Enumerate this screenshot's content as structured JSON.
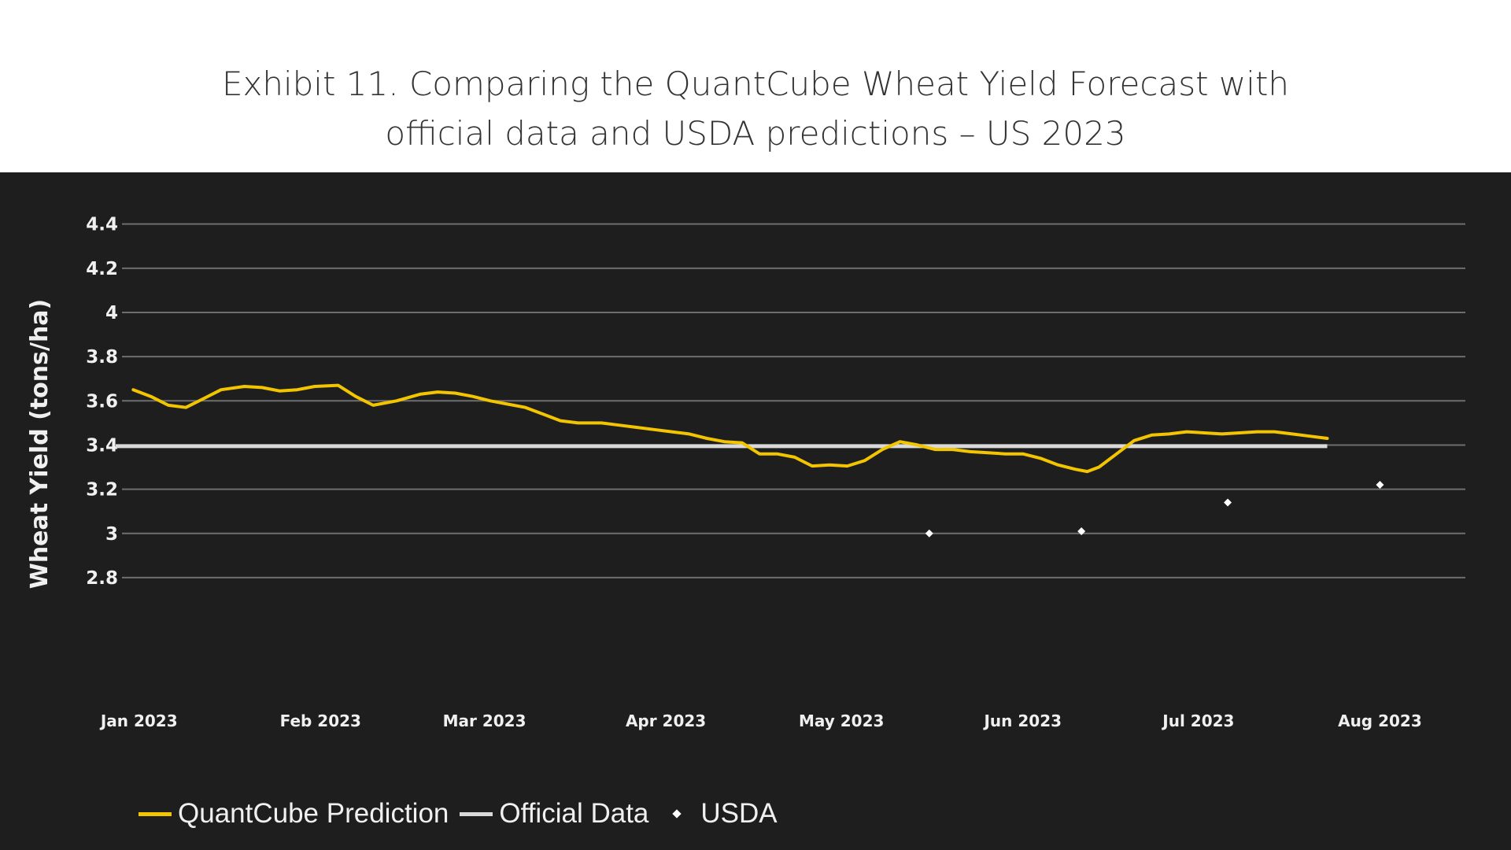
{
  "title": {
    "line1": "Exhibit 11. Comparing the QuantCube Wheat Yield Forecast with",
    "line2": "official data and USDA predictions – US 2023"
  },
  "colors": {
    "background": "#1e1e1e",
    "grid": "#6e6e6e",
    "prediction": "#f2c500",
    "official": "#d9d9d9",
    "usda": "#ffffff",
    "text": "#f0f0f0"
  },
  "chart_data": {
    "type": "line",
    "title": "Exhibit 11. Comparing the QuantCube Wheat Yield Forecast with official data and USDA predictions – US 2023",
    "xlabel": "",
    "ylabel": "Wheat Yield (tons/ha)",
    "ylim": [
      2.7,
      4.47
    ],
    "yticks": [
      {
        "value": 4.4,
        "label": "4.4"
      },
      {
        "value": 4.2,
        "label": "4.2"
      },
      {
        "value": 4.0,
        "label": "4"
      },
      {
        "value": 3.8,
        "label": "3.8"
      },
      {
        "value": 3.6,
        "label": "3.6"
      },
      {
        "value": 3.4,
        "label": "3.4"
      },
      {
        "value": 3.2,
        "label": "3.2"
      },
      {
        "value": 3.0,
        "label": "3"
      },
      {
        "value": 2.8,
        "label": "2.8"
      }
    ],
    "xlim_days": [
      -4,
      227
    ],
    "xticks": [
      {
        "day": 0,
        "label": "Jan 2023"
      },
      {
        "day": 31,
        "label": "Feb 2023"
      },
      {
        "day": 59,
        "label": "Mar 2023"
      },
      {
        "day": 90,
        "label": "Apr 2023"
      },
      {
        "day": 120,
        "label": "May 2023"
      },
      {
        "day": 151,
        "label": "Jun 2023"
      },
      {
        "day": 181,
        "label": "Jul 2023"
      },
      {
        "day": 212,
        "label": "Aug 2023"
      }
    ],
    "series": [
      {
        "name": "QuantCube Prediction",
        "kind": "line",
        "points": [
          [
            -1,
            3.65
          ],
          [
            2,
            3.62
          ],
          [
            5,
            3.58
          ],
          [
            8,
            3.57
          ],
          [
            11,
            3.61
          ],
          [
            14,
            3.65
          ],
          [
            18,
            3.665
          ],
          [
            21,
            3.66
          ],
          [
            24,
            3.645
          ],
          [
            27,
            3.65
          ],
          [
            30,
            3.665
          ],
          [
            34,
            3.67
          ],
          [
            37,
            3.62
          ],
          [
            40,
            3.58
          ],
          [
            44,
            3.6
          ],
          [
            48,
            3.63
          ],
          [
            51,
            3.64
          ],
          [
            54,
            3.635
          ],
          [
            57,
            3.62
          ],
          [
            60,
            3.6
          ],
          [
            63,
            3.585
          ],
          [
            66,
            3.57
          ],
          [
            69,
            3.54
          ],
          [
            72,
            3.51
          ],
          [
            75,
            3.5
          ],
          [
            79,
            3.5
          ],
          [
            82,
            3.49
          ],
          [
            85,
            3.48
          ],
          [
            88,
            3.47
          ],
          [
            91,
            3.46
          ],
          [
            94,
            3.45
          ],
          [
            97,
            3.43
          ],
          [
            100,
            3.415
          ],
          [
            103,
            3.41
          ],
          [
            106,
            3.36
          ],
          [
            109,
            3.36
          ],
          [
            112,
            3.345
          ],
          [
            115,
            3.305
          ],
          [
            118,
            3.31
          ],
          [
            121,
            3.305
          ],
          [
            124,
            3.33
          ],
          [
            127,
            3.38
          ],
          [
            130,
            3.415
          ],
          [
            133,
            3.4
          ],
          [
            136,
            3.38
          ],
          [
            139,
            3.38
          ],
          [
            142,
            3.37
          ],
          [
            145,
            3.365
          ],
          [
            148,
            3.36
          ],
          [
            151,
            3.36
          ],
          [
            154,
            3.34
          ],
          [
            157,
            3.31
          ],
          [
            160,
            3.29
          ],
          [
            162,
            3.28
          ],
          [
            164,
            3.3
          ],
          [
            167,
            3.36
          ],
          [
            170,
            3.42
          ],
          [
            173,
            3.445
          ],
          [
            176,
            3.45
          ],
          [
            179,
            3.46
          ],
          [
            182,
            3.455
          ],
          [
            185,
            3.45
          ],
          [
            188,
            3.455
          ],
          [
            191,
            3.46
          ],
          [
            194,
            3.46
          ],
          [
            197,
            3.45
          ],
          [
            200,
            3.44
          ],
          [
            203,
            3.43
          ]
        ]
      },
      {
        "name": "Official Data",
        "kind": "line",
        "points": [
          [
            -4,
            3.395
          ],
          [
            203,
            3.395
          ]
        ]
      },
      {
        "name": "USDA",
        "kind": "scatter",
        "points": [
          [
            135,
            3.0
          ],
          [
            161,
            3.01
          ],
          [
            186,
            3.14
          ],
          [
            212,
            3.22
          ]
        ]
      }
    ],
    "legend": {
      "placement": "bottom-left",
      "entries": [
        "QuantCube Prediction",
        "Official Data",
        "USDA"
      ]
    }
  }
}
